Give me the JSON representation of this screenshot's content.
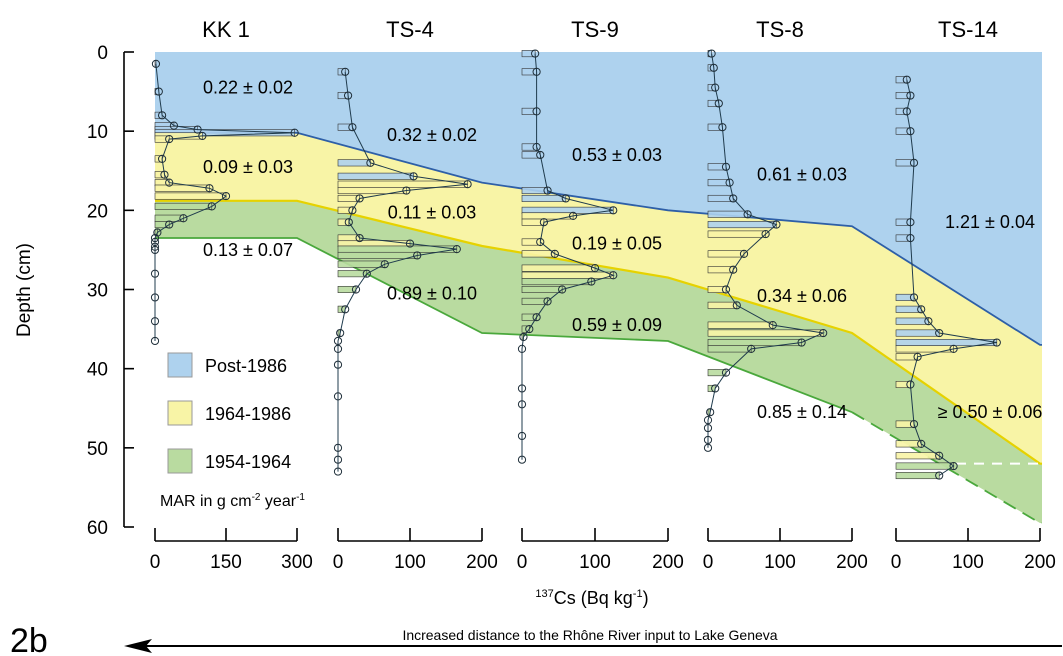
{
  "figure": {
    "panel_label": "2b",
    "x_axis_label": "137Cs (Bq kg-1)",
    "y_axis_label": "Depth (cm)",
    "arrow_caption": "Increased distance to the Rhône River input to Lake Geneva",
    "mar_note": "MAR in g cm-2 year-1",
    "y_ticks": [
      0,
      10,
      20,
      30,
      40,
      50,
      60
    ],
    "colors": {
      "post1986": "#aed2ee",
      "y1964_1986": "#f8f4a6",
      "y1954_1964": "#b9dba0",
      "post1986_line": "#2e5fa7",
      "y1964_line": "#e6d200",
      "y1954_line": "#4aa83c"
    }
  },
  "legend": {
    "items": [
      {
        "key": "post1986",
        "label": "Post-1986"
      },
      {
        "key": "y1964_1986",
        "label": "1964-1986"
      },
      {
        "key": "y1954_1964",
        "label": "1954-1964"
      }
    ]
  },
  "chart_data": {
    "type": "area",
    "y_unit": "cm",
    "ylim": [
      0,
      60
    ],
    "cores": [
      {
        "name": "KK 1",
        "xlim": [
          0,
          300
        ],
        "xticks": [
          0,
          150,
          300
        ],
        "boundary_1986": 10.2,
        "boundary_1964": 18.8,
        "boundary_1954": 23.5,
        "mar": [
          {
            "zone": "post1986",
            "text": "0.22 ± 0.02",
            "depth": 4.5
          },
          {
            "zone": "y1964_1986",
            "text": "0.09 ± 0.03",
            "depth": 14.5
          },
          {
            "zone": "y1954_1964",
            "text": "0.13 ± 0.07",
            "depth": 25
          }
        ],
        "profile": [
          [
            2,
            1.5
          ],
          [
            8,
            5
          ],
          [
            15,
            8
          ],
          [
            40,
            9.3
          ],
          [
            90,
            9.8
          ],
          [
            295,
            10.2
          ],
          [
            100,
            10.6
          ],
          [
            30,
            11
          ],
          [
            15,
            13.5
          ],
          [
            20,
            15.5
          ],
          [
            30,
            16.5
          ],
          [
            115,
            17.2
          ],
          [
            150,
            18.2
          ],
          [
            120,
            19.5
          ],
          [
            60,
            21
          ],
          [
            30,
            21.8
          ],
          [
            5,
            22.8
          ],
          [
            0,
            23.5
          ],
          [
            0,
            24
          ],
          [
            0,
            24.6
          ],
          [
            0,
            25
          ],
          [
            0,
            28
          ],
          [
            0,
            31
          ],
          [
            0,
            34
          ],
          [
            0,
            36.5
          ]
        ]
      },
      {
        "name": "TS-4",
        "xlim": [
          0,
          200
        ],
        "xticks": [
          0,
          100,
          200
        ],
        "boundary_1986": 16.5,
        "boundary_1964": 24.5,
        "boundary_1954": 35.5,
        "mar": [
          {
            "zone": "post1986",
            "text": "0.32 ± 0.02",
            "depth": 10.5
          },
          {
            "zone": "y1964_1986",
            "text": "0.11 ± 0.03",
            "depth": 20.3
          },
          {
            "zone": "y1954_1964",
            "text": "0.89 ± 0.10",
            "depth": 30.5
          }
        ],
        "profile": [
          [
            10,
            2.5
          ],
          [
            14,
            5.5
          ],
          [
            20,
            9.5
          ],
          [
            45,
            14
          ],
          [
            105,
            15.7
          ],
          [
            180,
            16.7
          ],
          [
            95,
            17.5
          ],
          [
            30,
            18.5
          ],
          [
            20,
            20
          ],
          [
            15,
            21.5
          ],
          [
            30,
            23.5
          ],
          [
            100,
            24.2
          ],
          [
            165,
            24.9
          ],
          [
            110,
            25.7
          ],
          [
            65,
            26.8
          ],
          [
            40,
            28
          ],
          [
            25,
            30
          ],
          [
            10,
            32.5
          ],
          [
            3,
            35.5
          ],
          [
            0,
            36.5
          ],
          [
            0,
            37.5
          ],
          [
            0,
            39.5
          ],
          [
            0,
            43.5
          ],
          [
            0,
            50
          ],
          [
            0,
            51.5
          ],
          [
            0,
            53
          ]
        ]
      },
      {
        "name": "TS-9",
        "xlim": [
          0,
          200
        ],
        "xticks": [
          0,
          100,
          200
        ],
        "boundary_1986": 20,
        "boundary_1964": 28.5,
        "boundary_1954": 36.5,
        "mar": [
          {
            "zone": "post1986",
            "text": "0.53 ± 0.03",
            "depth": 13
          },
          {
            "zone": "y1964_1986",
            "text": "0.19 ± 0.05",
            "depth": 24.2
          },
          {
            "zone": "y1954_1964",
            "text": "0.59 ± 0.09",
            "depth": 34.5
          }
        ],
        "profile": [
          [
            18,
            0.2
          ],
          [
            20,
            2.5
          ],
          [
            20,
            7.5
          ],
          [
            20,
            12
          ],
          [
            25,
            13
          ],
          [
            35,
            17.5
          ],
          [
            60,
            18.5
          ],
          [
            125,
            20
          ],
          [
            70,
            20.7
          ],
          [
            30,
            21.5
          ],
          [
            25,
            24
          ],
          [
            45,
            25.5
          ],
          [
            100,
            27.3
          ],
          [
            125,
            28.2
          ],
          [
            95,
            29
          ],
          [
            55,
            30
          ],
          [
            35,
            31.5
          ],
          [
            20,
            33.5
          ],
          [
            10,
            35
          ],
          [
            2,
            36
          ],
          [
            0,
            37.5
          ],
          [
            0,
            42.5
          ],
          [
            0,
            44.5
          ],
          [
            0,
            48.5
          ],
          [
            0,
            51.5
          ]
        ]
      },
      {
        "name": "TS-8",
        "xlim": [
          0,
          200
        ],
        "xticks": [
          0,
          100,
          200
        ],
        "boundary_1986": 22,
        "boundary_1964": 35.5,
        "boundary_1954": 45.5,
        "mar": [
          {
            "zone": "post1986",
            "text": "0.61 ± 0.03",
            "depth": 15.5
          },
          {
            "zone": "y1964_1986",
            "text": "0.34 ± 0.06",
            "depth": 30.8
          },
          {
            "zone": "y1954_1964",
            "text": "0.85 ± 0.14",
            "depth": 45.5
          }
        ],
        "profile": [
          [
            5,
            0.2
          ],
          [
            8,
            2
          ],
          [
            10,
            4.5
          ],
          [
            15,
            6.5
          ],
          [
            20,
            9.5
          ],
          [
            25,
            14.5
          ],
          [
            30,
            16.5
          ],
          [
            35,
            18.5
          ],
          [
            55,
            20.5
          ],
          [
            95,
            21.8
          ],
          [
            80,
            23
          ],
          [
            50,
            25.5
          ],
          [
            35,
            27.5
          ],
          [
            25,
            30
          ],
          [
            40,
            32
          ],
          [
            90,
            34.5
          ],
          [
            160,
            35.5
          ],
          [
            130,
            36.7
          ],
          [
            60,
            37.5
          ],
          [
            25,
            40.5
          ],
          [
            10,
            42.5
          ],
          [
            3,
            45.5
          ],
          [
            0,
            46.5
          ],
          [
            0,
            47.5
          ],
          [
            0,
            49
          ],
          [
            0,
            50
          ]
        ]
      },
      {
        "name": "TS-14",
        "xlim": [
          0,
          200
        ],
        "xticks": [
          0,
          100,
          200
        ],
        "boundary_1986": 37,
        "boundary_1964": 52,
        "boundary_1954": 59.5,
        "boundary_1954_dashed": true,
        "mar": [
          {
            "zone": "post1986",
            "text": "1.21 ± 0.04",
            "depth": 21.5
          },
          {
            "zone": "y1964_1986",
            "text": "≥ 0.50 ± 0.06",
            "depth": 45.5
          }
        ],
        "profile": [
          [
            15,
            3.5
          ],
          [
            20,
            5.5
          ],
          [
            15,
            7.5
          ],
          [
            20,
            10
          ],
          [
            25,
            14
          ],
          [
            20,
            21.5
          ],
          [
            20,
            23.5
          ],
          [
            25,
            31
          ],
          [
            35,
            32.5
          ],
          [
            45,
            34
          ],
          [
            60,
            35.5
          ],
          [
            140,
            36.7
          ],
          [
            80,
            37.5
          ],
          [
            30,
            38.5
          ],
          [
            20,
            42
          ],
          [
            25,
            47
          ],
          [
            35,
            49.5
          ],
          [
            60,
            51
          ],
          [
            80,
            52.3
          ],
          [
            60,
            53.5
          ]
        ]
      }
    ]
  }
}
